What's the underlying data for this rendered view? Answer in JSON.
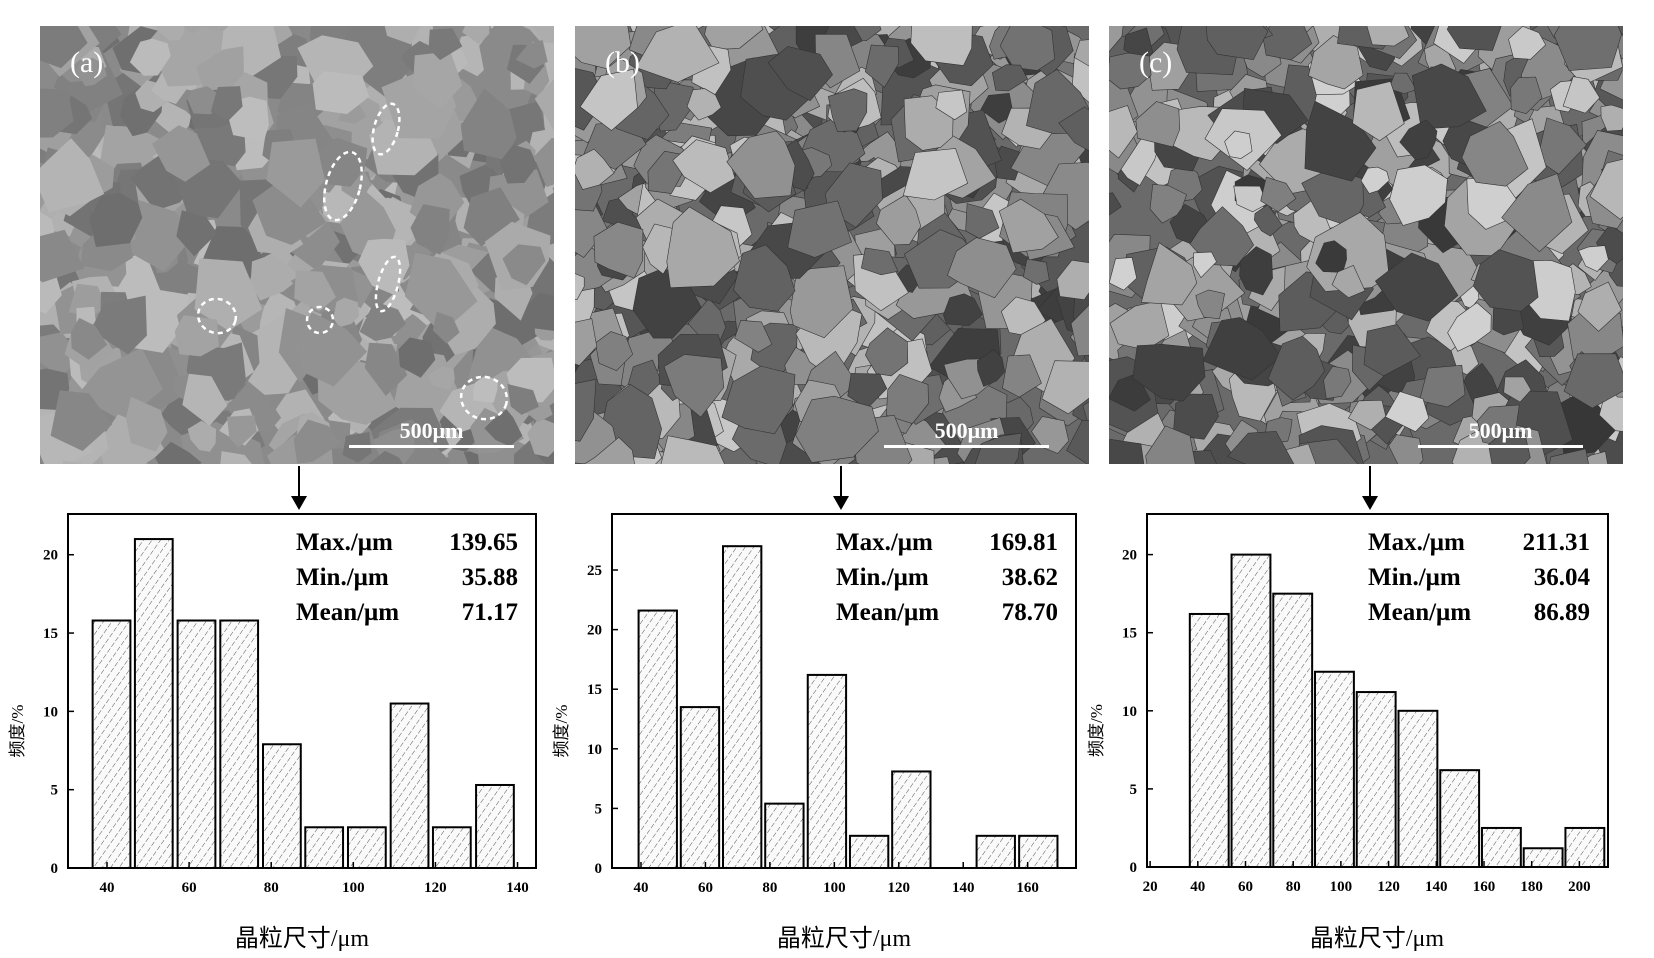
{
  "panels": [
    {
      "label": "(a)",
      "scale": "500μm"
    },
    {
      "label": "(b)",
      "scale": "500μm"
    },
    {
      "label": "(c)",
      "scale": "500μm"
    }
  ],
  "chart_data": [
    {
      "type": "bar",
      "ylabel": "频度/%",
      "xlabel": "晶粒尺寸/μm",
      "x": [
        41.1,
        51.4,
        61.8,
        72.2,
        82.6,
        92.9,
        103.3,
        113.7,
        124.0,
        134.5
      ],
      "bin_width": 10.4,
      "values": [
        15.8,
        21.0,
        15.8,
        15.8,
        7.9,
        2.6,
        2.6,
        10.5,
        2.6,
        5.3
      ],
      "xticks": [
        40,
        60,
        80,
        100,
        120,
        140
      ],
      "yticks": [
        0,
        5,
        10,
        15,
        20
      ],
      "xlim": [
        30.5,
        144.5
      ],
      "ylim": [
        0,
        22.6
      ],
      "stats": [
        {
          "label": "Max./μm",
          "value": "139.65"
        },
        {
          "label": "Min./μm",
          "value": "35.88"
        },
        {
          "label": "Mean/μm",
          "value": "71.17"
        }
      ]
    },
    {
      "type": "bar",
      "ylabel": "频度/%",
      "xlabel": "晶粒尺寸/μm",
      "x": [
        45.2,
        58.3,
        71.4,
        84.5,
        97.7,
        110.8,
        123.9,
        137.0,
        150.1,
        163.3
      ],
      "bin_width": 13.1,
      "values": [
        21.6,
        13.5,
        27.0,
        5.4,
        16.2,
        2.7,
        8.1,
        0,
        2.7,
        2.7
      ],
      "xticks": [
        40,
        60,
        80,
        100,
        120,
        140,
        160
      ],
      "yticks": [
        0,
        5,
        10,
        15,
        20,
        25
      ],
      "xlim": [
        31,
        175
      ],
      "ylim": [
        0,
        29.7
      ],
      "stats": [
        {
          "label": "Max./μm",
          "value": "169.81"
        },
        {
          "label": "Min./μm",
          "value": "38.62"
        },
        {
          "label": "Mean/μm",
          "value": "78.70"
        }
      ]
    },
    {
      "type": "bar",
      "ylabel": "频度/%",
      "xlabel": "晶粒尺寸/μm",
      "x": [
        44.8,
        62.3,
        79.8,
        97.3,
        114.8,
        132.3,
        149.8,
        167.3,
        184.8,
        202.3
      ],
      "bin_width": 17.5,
      "values": [
        16.2,
        20.0,
        17.5,
        12.5,
        11.2,
        10.0,
        6.2,
        2.5,
        1.2,
        2.5
      ],
      "xticks": [
        20,
        40,
        60,
        80,
        100,
        120,
        140,
        160,
        180,
        200
      ],
      "yticks": [
        0,
        5,
        10,
        15,
        20
      ],
      "xlim": [
        18.7,
        212
      ],
      "ylim": [
        0,
        22.6
      ],
      "stats": [
        {
          "label": "Max./μm",
          "value": "211.31"
        },
        {
          "label": "Min./μm",
          "value": "36.04"
        },
        {
          "label": "Mean/μm",
          "value": "86.89"
        }
      ]
    }
  ]
}
